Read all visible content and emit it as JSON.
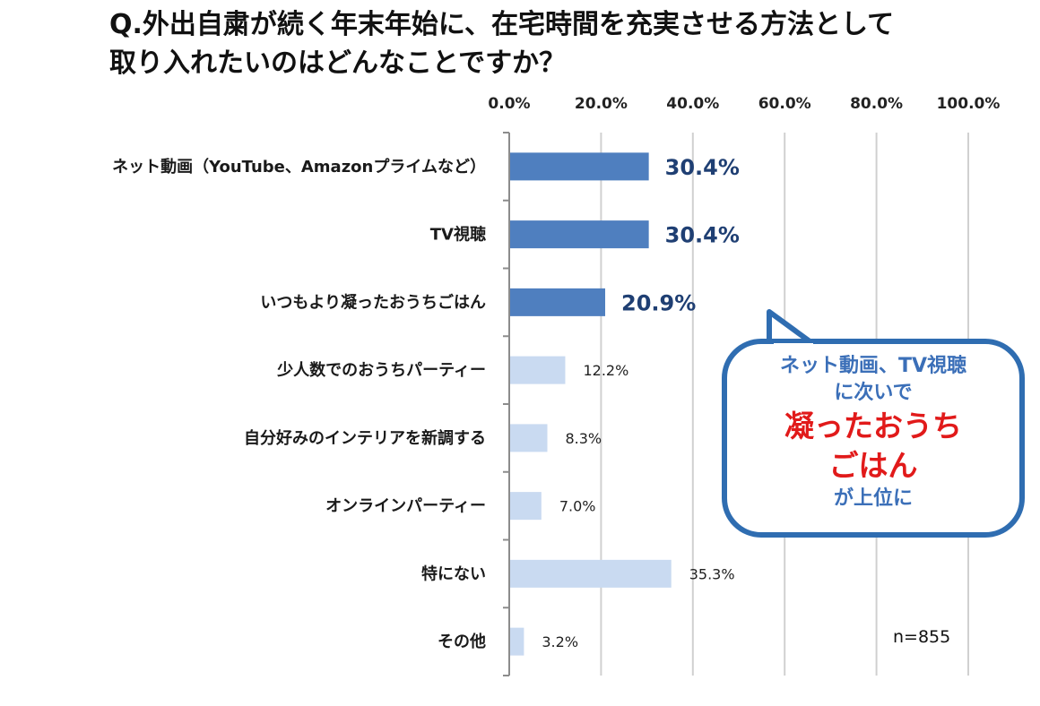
{
  "title": {
    "line1": "Q.外出自粛が続く年末年始に、在宅時間を充実させる方法として",
    "line2": "取り入れたいのはどんなことですか？"
  },
  "chart_data": {
    "type": "bar",
    "orientation": "horizontal",
    "categories": [
      "ネット動画（YouTube、Amazonプライムなど）",
      "TV視聴",
      "いつもより凝ったおうちごはん",
      "少人数でのおうちパーティー",
      "自分好みのインテリアを新調する",
      "オンラインパーティー",
      "特にない",
      "その他"
    ],
    "values": [
      30.4,
      30.4,
      20.9,
      12.2,
      8.3,
      7.0,
      35.3,
      3.2
    ],
    "value_labels": [
      "30.4%",
      "30.4%",
      "20.9%",
      "12.2%",
      "8.3%",
      "7.0%",
      "35.3%",
      "3.2%"
    ],
    "highlighted": [
      true,
      true,
      true,
      false,
      false,
      false,
      false,
      false
    ],
    "xlim": [
      0,
      100
    ],
    "ticks": [
      0,
      20,
      40,
      60,
      80,
      100
    ],
    "tick_labels": [
      "0.0%",
      "20.0%",
      "40.0%",
      "60.0%",
      "80.0%",
      "100.0%"
    ],
    "axis_position": "top",
    "grid": true,
    "colors": {
      "highlight": "#4f7fbf",
      "normal": "#c9daf1",
      "grid": "#d0d0d0",
      "axis": "#8c8c8c"
    }
  },
  "note": "n=855",
  "callout": {
    "line1": "ネット動画、TV視聴",
    "line2": "に次いで",
    "line3": "凝ったおうち",
    "line4": "ごはん",
    "line5": "が上位に",
    "colors": {
      "border": "#2f6db1",
      "text": "#3b6fb8",
      "emphasis": "#e11a1a"
    }
  }
}
